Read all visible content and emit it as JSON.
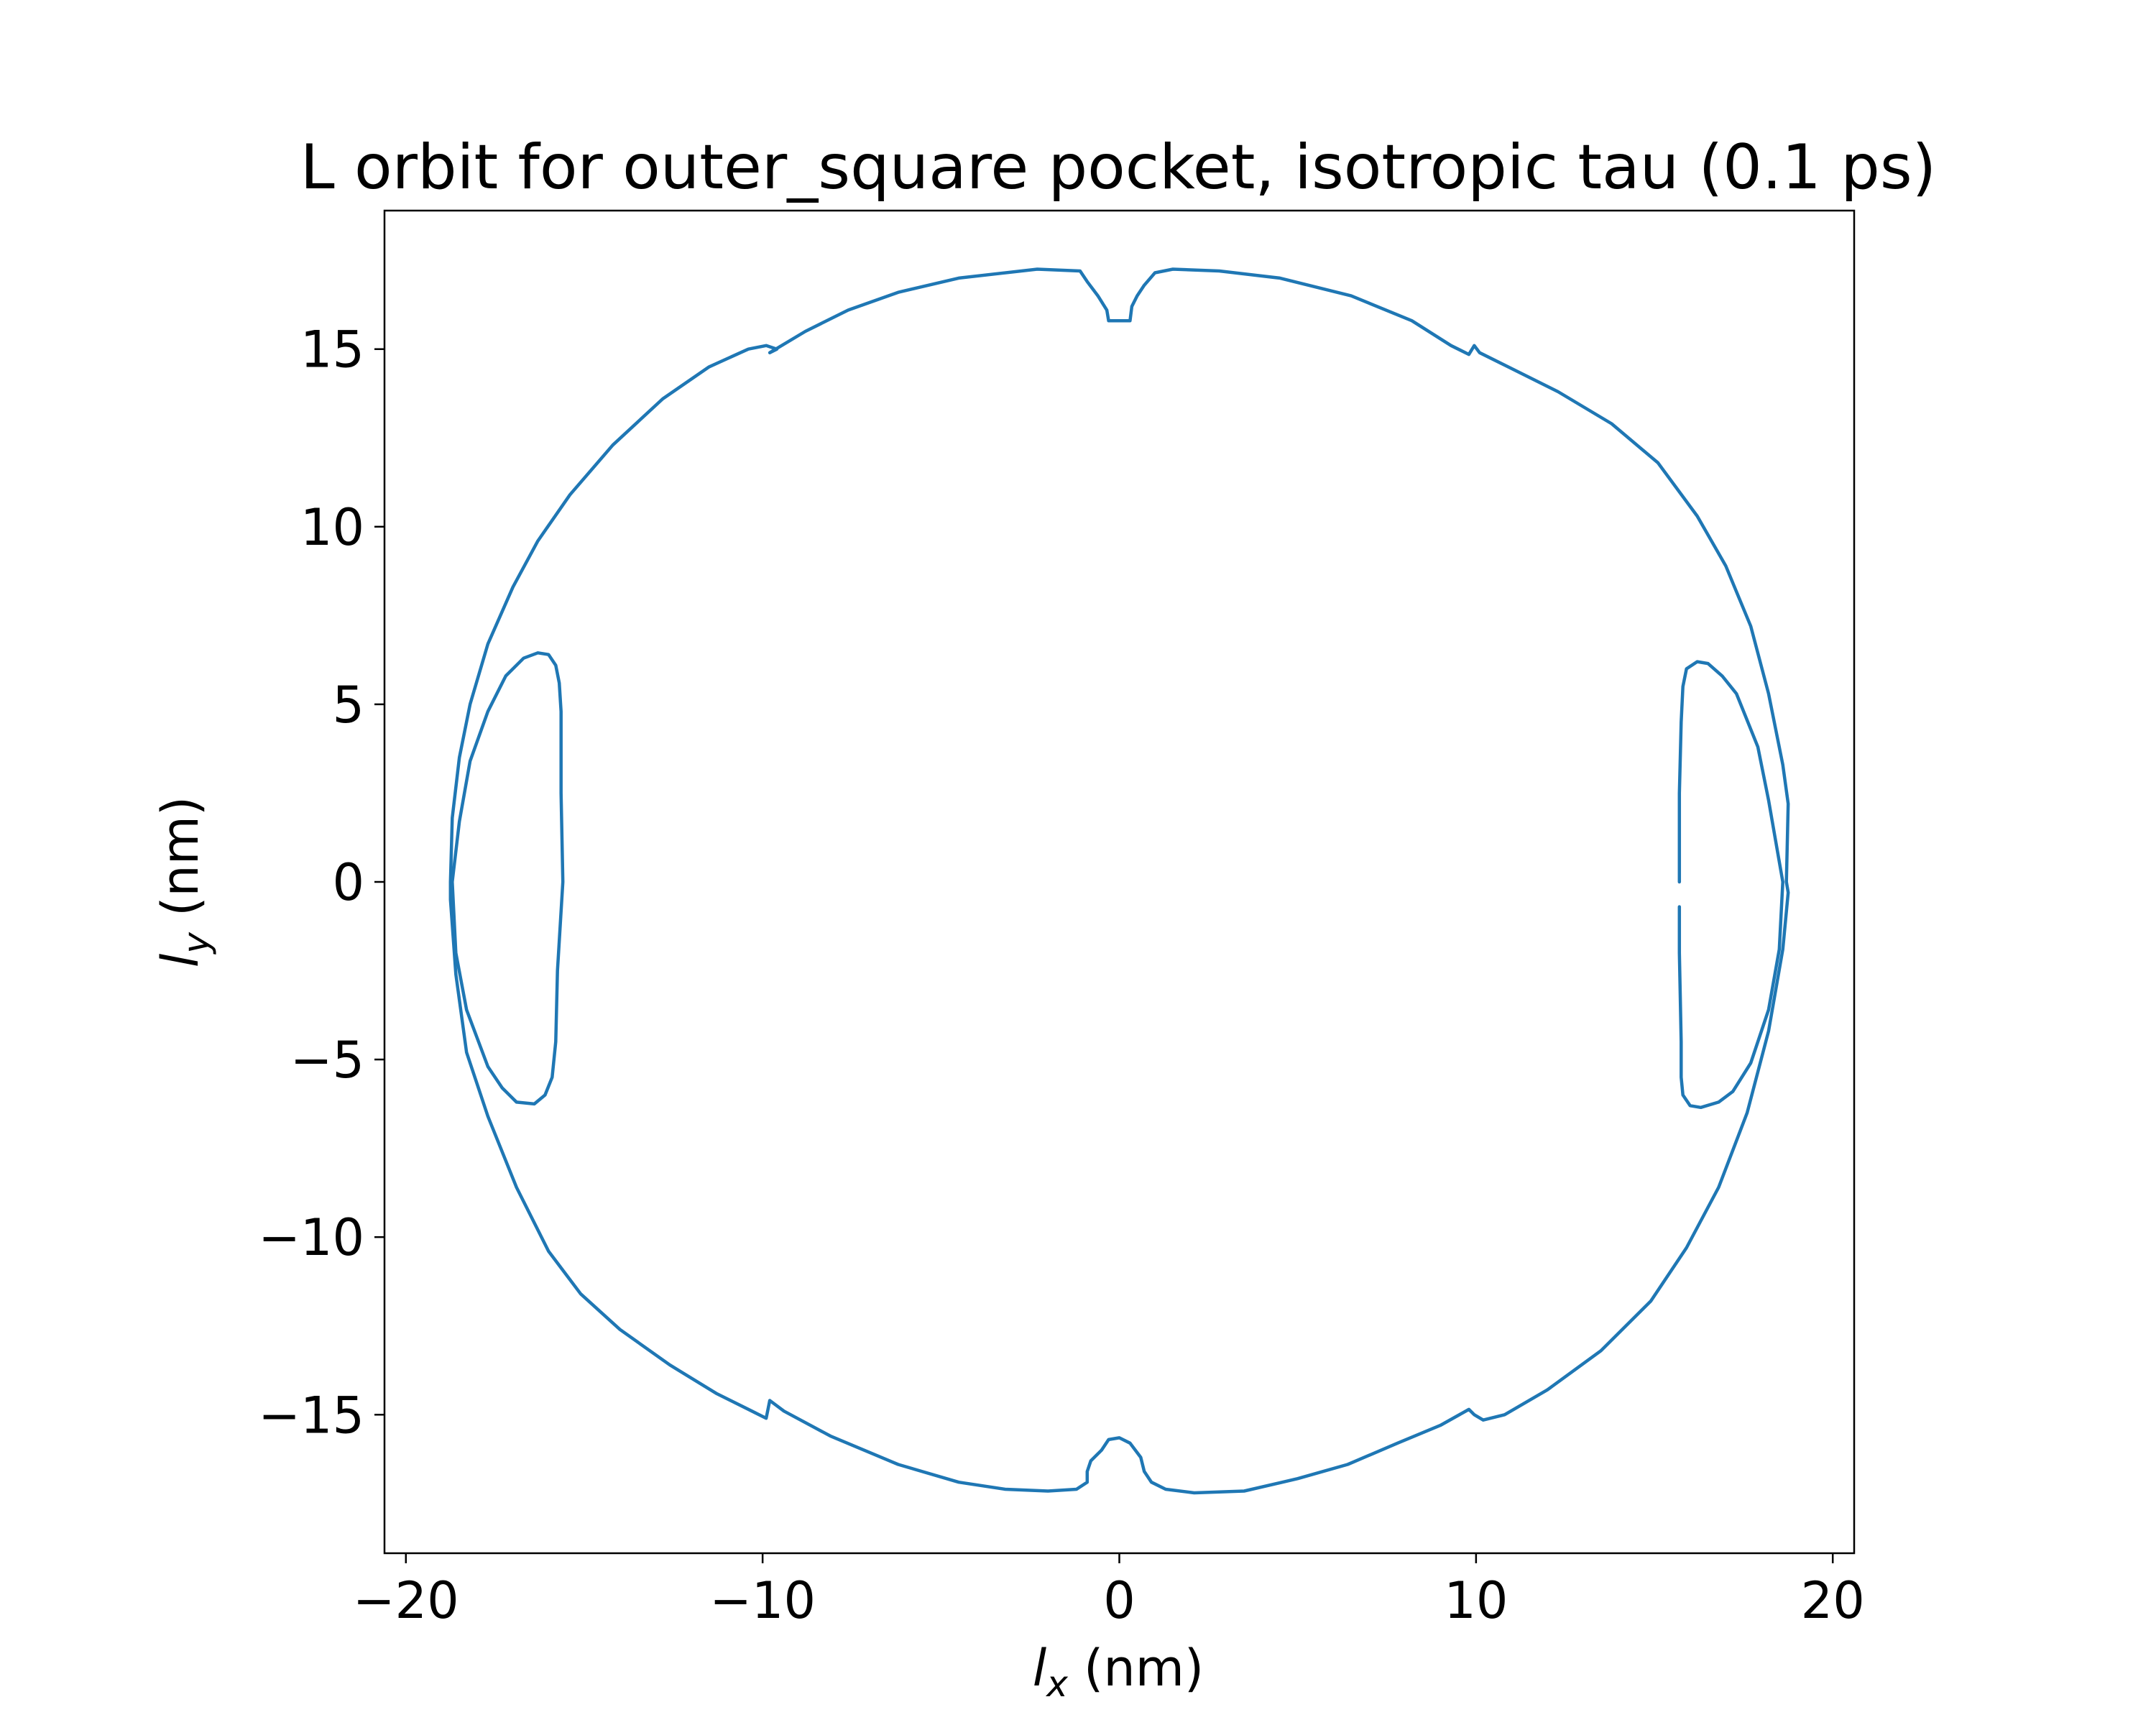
{
  "chart_data": {
    "type": "line",
    "title": "L orbit for outer_square pocket, isotropic tau (0.1 ps)",
    "xlabel_symbol": "l",
    "xlabel_sub": "x",
    "xlabel_unit": " (nm)",
    "ylabel_symbol": "l",
    "ylabel_sub": "y",
    "ylabel_unit": " (nm)",
    "xlim": [
      -20.6,
      20.6
    ],
    "ylim": [
      -18.9,
      18.9
    ],
    "xticks": [
      -20,
      -10,
      0,
      10,
      20
    ],
    "yticks": [
      -15,
      -10,
      -5,
      0,
      5,
      10,
      15
    ],
    "xtick_labels": [
      "−20",
      "−10",
      "0",
      "10",
      "20"
    ],
    "ytick_labels": [
      "−15",
      "−10",
      "−5",
      "0",
      "5",
      "10",
      "15"
    ],
    "grid": false,
    "line_color": "#1f77b4",
    "series": [
      {
        "segments": [
          [
            [
              18.7,
              0.0
            ],
            [
              18.75,
              2.2
            ],
            [
              18.6,
              3.3
            ],
            [
              18.2,
              5.3
            ],
            [
              17.7,
              7.2
            ],
            [
              17.0,
              8.9
            ],
            [
              16.2,
              10.3
            ],
            [
              15.1,
              11.8
            ],
            [
              13.8,
              12.9
            ],
            [
              12.3,
              13.8
            ],
            [
              10.9,
              14.5
            ],
            [
              10.1,
              14.9
            ],
            [
              9.95,
              15.1
            ],
            [
              9.8,
              14.85
            ],
            [
              9.3,
              15.1
            ],
            [
              8.2,
              15.8
            ],
            [
              6.5,
              16.5
            ],
            [
              4.5,
              17.0
            ],
            [
              2.8,
              17.2
            ],
            [
              1.5,
              17.25
            ],
            [
              1.0,
              17.15
            ],
            [
              0.7,
              16.8
            ],
            [
              0.5,
              16.5
            ],
            [
              0.35,
              16.2
            ],
            [
              0.3,
              15.8
            ],
            [
              -0.1,
              15.8
            ],
            [
              -0.3,
              15.8
            ],
            [
              -0.35,
              16.1
            ],
            [
              -0.6,
              16.5
            ],
            [
              -0.9,
              16.9
            ],
            [
              -1.1,
              17.2
            ],
            [
              -2.3,
              17.25
            ],
            [
              -4.5,
              17.0
            ],
            [
              -6.2,
              16.6
            ],
            [
              -7.6,
              16.1
            ],
            [
              -8.8,
              15.5
            ],
            [
              -9.8,
              14.9
            ],
            [
              -9.6,
              15.0
            ],
            [
              -9.9,
              15.1
            ],
            [
              -10.4,
              15.0
            ],
            [
              -11.5,
              14.5
            ],
            [
              -12.8,
              13.6
            ],
            [
              -14.2,
              12.3
            ],
            [
              -15.4,
              10.9
            ],
            [
              -16.3,
              9.6
            ],
            [
              -17.0,
              8.3
            ],
            [
              -17.7,
              6.7
            ],
            [
              -18.2,
              5.0
            ],
            [
              -18.5,
              3.5
            ],
            [
              -18.7,
              1.8
            ],
            [
              -18.75,
              0.0
            ],
            [
              -18.75,
              -0.5
            ],
            [
              -18.6,
              -2.6
            ],
            [
              -18.3,
              -4.8
            ],
            [
              -17.7,
              -6.6
            ],
            [
              -16.9,
              -8.6
            ],
            [
              -16.0,
              -10.4
            ],
            [
              -15.1,
              -11.6
            ],
            [
              -14.0,
              -12.6
            ],
            [
              -12.6,
              -13.6
            ],
            [
              -11.3,
              -14.4
            ],
            [
              -10.3,
              -14.9
            ],
            [
              -9.9,
              -15.1
            ],
            [
              -9.85,
              -14.85
            ],
            [
              -9.8,
              -14.6
            ],
            [
              -9.4,
              -14.9
            ],
            [
              -8.1,
              -15.6
            ],
            [
              -6.2,
              -16.4
            ],
            [
              -4.5,
              -16.9
            ],
            [
              -3.2,
              -17.1
            ],
            [
              -2.0,
              -17.15
            ],
            [
              -1.2,
              -17.1
            ],
            [
              -0.9,
              -16.9
            ],
            [
              -0.9,
              -16.6
            ],
            [
              -0.8,
              -16.3
            ],
            [
              -0.5,
              -16.0
            ],
            [
              -0.3,
              -15.7
            ],
            [
              0.0,
              -15.65
            ],
            [
              0.3,
              -15.8
            ],
            [
              0.6,
              -16.2
            ],
            [
              0.7,
              -16.6
            ],
            [
              0.9,
              -16.9
            ],
            [
              1.3,
              -17.1
            ],
            [
              2.1,
              -17.2
            ],
            [
              3.5,
              -17.15
            ],
            [
              5.0,
              -16.8
            ],
            [
              6.4,
              -16.4
            ],
            [
              7.8,
              -15.8
            ],
            [
              9.0,
              -15.3
            ],
            [
              9.8,
              -14.85
            ],
            [
              9.95,
              -15.0
            ],
            [
              10.2,
              -15.15
            ],
            [
              10.8,
              -15.0
            ],
            [
              12.0,
              -14.3
            ],
            [
              13.5,
              -13.2
            ],
            [
              14.9,
              -11.8
            ],
            [
              15.9,
              -10.3
            ],
            [
              16.8,
              -8.6
            ],
            [
              17.6,
              -6.5
            ],
            [
              18.2,
              -4.2
            ],
            [
              18.6,
              -1.9
            ],
            [
              18.75,
              -0.3
            ],
            [
              18.7,
              0.0
            ]
          ],
          [
            [
              -15.6,
              0.0
            ],
            [
              -15.65,
              2.5
            ],
            [
              -15.65,
              4.8
            ],
            [
              -15.7,
              5.6
            ],
            [
              -15.8,
              6.1
            ],
            [
              -16.0,
              6.4
            ],
            [
              -16.3,
              6.45
            ],
            [
              -16.7,
              6.3
            ],
            [
              -17.2,
              5.8
            ],
            [
              -17.7,
              4.8
            ],
            [
              -18.2,
              3.4
            ],
            [
              -18.5,
              1.7
            ],
            [
              -18.7,
              0.0
            ],
            [
              -18.6,
              -2.0
            ],
            [
              -18.3,
              -3.6
            ],
            [
              -17.7,
              -5.2
            ],
            [
              -17.3,
              -5.8
            ],
            [
              -16.9,
              -6.2
            ],
            [
              -16.4,
              -6.25
            ],
            [
              -16.1,
              -6.0
            ],
            [
              -15.9,
              -5.5
            ],
            [
              -15.8,
              -4.5
            ],
            [
              -15.75,
              -2.5
            ],
            [
              -15.6,
              0.0
            ]
          ],
          [
            [
              15.7,
              0.0
            ],
            [
              15.7,
              2.5
            ],
            [
              15.75,
              4.5
            ],
            [
              15.8,
              5.5
            ],
            [
              15.9,
              6.0
            ],
            [
              16.2,
              6.2
            ],
            [
              16.5,
              6.15
            ],
            [
              16.9,
              5.8
            ],
            [
              17.3,
              5.3
            ],
            [
              17.9,
              3.8
            ],
            [
              18.2,
              2.3
            ],
            [
              18.6,
              0.0
            ],
            [
              18.5,
              -1.9
            ],
            [
              18.2,
              -3.6
            ],
            [
              17.7,
              -5.1
            ],
            [
              17.2,
              -5.9
            ],
            [
              16.8,
              -6.2
            ],
            [
              16.3,
              -6.35
            ],
            [
              16.0,
              -6.3
            ],
            [
              15.8,
              -6.0
            ],
            [
              15.75,
              -5.5
            ],
            [
              15.75,
              -4.5
            ],
            [
              15.7,
              -2.0
            ],
            [
              15.7,
              -0.7
            ]
          ]
        ]
      }
    ]
  }
}
